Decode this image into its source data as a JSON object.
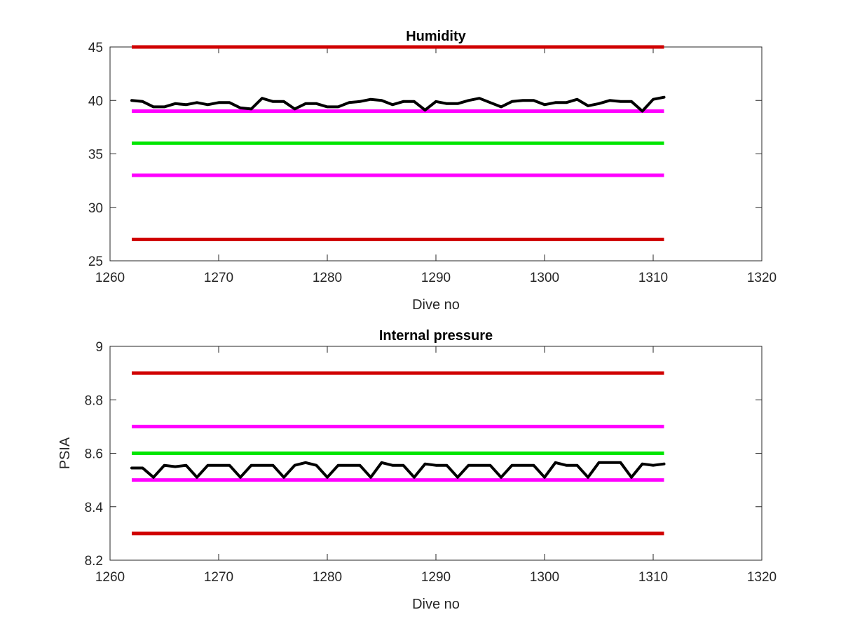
{
  "figure": {
    "background": "#ffffff"
  },
  "chart_data": [
    {
      "type": "line",
      "title": "Humidity",
      "xlabel": "Dive no",
      "ylabel": "",
      "xlim": [
        1260,
        1320
      ],
      "ylim": [
        25,
        45
      ],
      "xticks": [
        "1260",
        "1270",
        "1280",
        "1290",
        "1300",
        "1310",
        "1320"
      ],
      "yticks": [
        "25",
        "30",
        "35",
        "40",
        "45"
      ],
      "grid": false,
      "reference_lines": [
        {
          "value": 45,
          "color": "#d00000",
          "x_range": [
            1262,
            1311
          ]
        },
        {
          "value": 39,
          "color": "#ff00ff",
          "x_range": [
            1262,
            1311
          ]
        },
        {
          "value": 36,
          "color": "#00e600",
          "x_range": [
            1262,
            1311
          ]
        },
        {
          "value": 33,
          "color": "#ff00ff",
          "x_range": [
            1262,
            1311
          ]
        },
        {
          "value": 27,
          "color": "#d00000",
          "x_range": [
            1262,
            1311
          ]
        }
      ],
      "series": [
        {
          "color": "#000000",
          "x": [
            1262,
            1263,
            1264,
            1265,
            1266,
            1267,
            1268,
            1269,
            1270,
            1271,
            1272,
            1273,
            1274,
            1275,
            1276,
            1277,
            1278,
            1279,
            1280,
            1281,
            1282,
            1283,
            1284,
            1285,
            1286,
            1287,
            1288,
            1289,
            1290,
            1291,
            1292,
            1293,
            1294,
            1295,
            1296,
            1297,
            1298,
            1299,
            1300,
            1301,
            1302,
            1303,
            1304,
            1305,
            1306,
            1307,
            1308,
            1309,
            1310,
            1311
          ],
          "values": [
            40.0,
            39.9,
            39.4,
            39.4,
            39.7,
            39.6,
            39.8,
            39.6,
            39.8,
            39.8,
            39.3,
            39.2,
            40.2,
            39.9,
            39.9,
            39.2,
            39.7,
            39.7,
            39.4,
            39.4,
            39.8,
            39.9,
            40.1,
            40.0,
            39.6,
            39.9,
            39.9,
            39.1,
            39.9,
            39.7,
            39.7,
            40.0,
            40.2,
            39.8,
            39.4,
            39.9,
            40.0,
            40.0,
            39.6,
            39.8,
            39.8,
            40.1,
            39.5,
            39.7,
            40.0,
            39.9,
            39.9,
            39.0,
            40.1,
            40.3
          ]
        }
      ]
    },
    {
      "type": "line",
      "title": "Internal pressure",
      "xlabel": "Dive no",
      "ylabel": "PSIA",
      "xlim": [
        1260,
        1320
      ],
      "ylim": [
        8.2,
        9.0
      ],
      "xticks": [
        "1260",
        "1270",
        "1280",
        "1290",
        "1300",
        "1310",
        "1320"
      ],
      "yticks": [
        "8.2",
        "8.4",
        "8.6",
        "8.8",
        "9"
      ],
      "grid": false,
      "reference_lines": [
        {
          "value": 8.9,
          "color": "#d00000",
          "x_range": [
            1262,
            1311
          ]
        },
        {
          "value": 8.7,
          "color": "#ff00ff",
          "x_range": [
            1262,
            1311
          ]
        },
        {
          "value": 8.6,
          "color": "#00e600",
          "x_range": [
            1262,
            1311
          ]
        },
        {
          "value": 8.5,
          "color": "#ff00ff",
          "x_range": [
            1262,
            1311
          ]
        },
        {
          "value": 8.3,
          "color": "#d00000",
          "x_range": [
            1262,
            1311
          ]
        }
      ],
      "series": [
        {
          "color": "#000000",
          "x": [
            1262,
            1263,
            1264,
            1265,
            1266,
            1267,
            1268,
            1269,
            1270,
            1271,
            1272,
            1273,
            1274,
            1275,
            1276,
            1277,
            1278,
            1279,
            1280,
            1281,
            1282,
            1283,
            1284,
            1285,
            1286,
            1287,
            1288,
            1289,
            1290,
            1291,
            1292,
            1293,
            1294,
            1295,
            1296,
            1297,
            1298,
            1299,
            1300,
            1301,
            1302,
            1303,
            1304,
            1305,
            1306,
            1307,
            1308,
            1309,
            1310,
            1311
          ],
          "values": [
            8.545,
            8.545,
            8.51,
            8.555,
            8.55,
            8.555,
            8.51,
            8.555,
            8.555,
            8.555,
            8.51,
            8.555,
            8.555,
            8.555,
            8.51,
            8.555,
            8.565,
            8.555,
            8.51,
            8.555,
            8.555,
            8.555,
            8.51,
            8.565,
            8.555,
            8.555,
            8.51,
            8.56,
            8.555,
            8.555,
            8.51,
            8.555,
            8.555,
            8.555,
            8.51,
            8.555,
            8.555,
            8.555,
            8.51,
            8.565,
            8.555,
            8.555,
            8.51,
            8.565,
            8.565,
            8.565,
            8.51,
            8.56,
            8.555,
            8.56
          ]
        }
      ]
    }
  ]
}
